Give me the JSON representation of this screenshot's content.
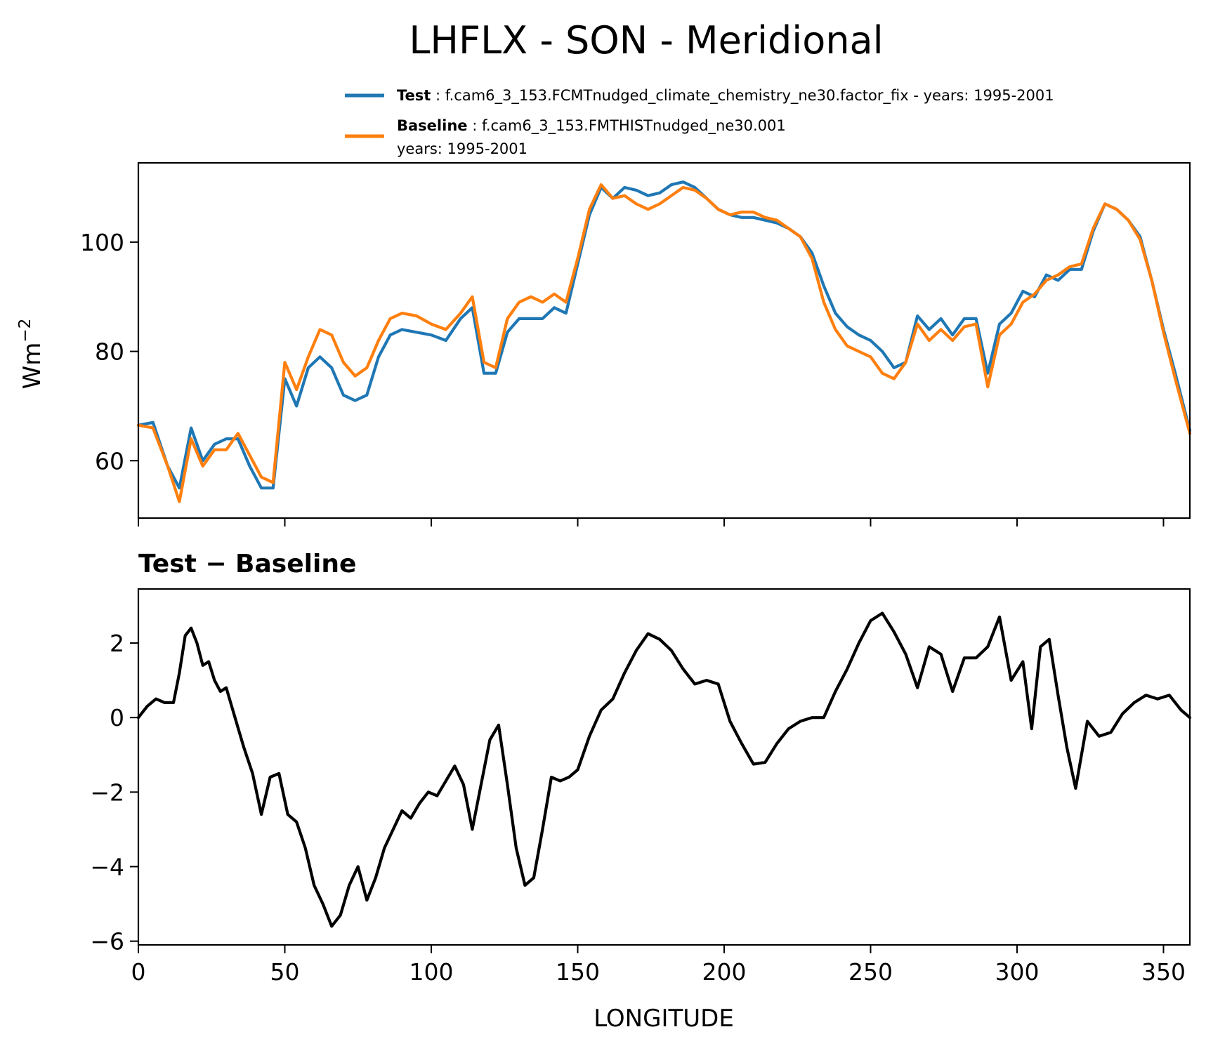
{
  "figure": {
    "title": "LHFLX - SON - Meridional",
    "subtitle": "Test − Baseline",
    "ylabel_top": "Wm⁻²",
    "xlabel": "LONGITUDE"
  },
  "legend": {
    "entries": [
      {
        "bold": "Test",
        "sep": " : ",
        "text": "f.cam6_3_153.FCMTnudged_climate_chemistry_ne30.factor_fix - years: 1995-2001",
        "text2": "",
        "color": "#1f77b4"
      },
      {
        "bold": "Baseline",
        "sep": " : ",
        "text": "f.cam6_3_153.FMTHISTnudged_ne30.001",
        "text2": "years: 1995-2001",
        "color": "#ff7f0e"
      }
    ]
  },
  "chart_data": [
    {
      "type": "line",
      "title": "",
      "xlabel": "",
      "ylabel": "Wm⁻²",
      "xlim": [
        0,
        359
      ],
      "ylim": [
        49.5,
        114.5
      ],
      "xticks": [
        0,
        50,
        100,
        150,
        200,
        250,
        300,
        350
      ],
      "yticks": [
        60,
        80,
        100
      ],
      "ytick_labels": [
        "60",
        "80",
        "100"
      ],
      "grid": false,
      "legend": "top-right",
      "x": [
        0,
        5,
        10,
        14,
        18,
        22,
        26,
        30,
        34,
        38,
        42,
        46,
        50,
        54,
        58,
        62,
        66,
        70,
        74,
        78,
        82,
        86,
        90,
        95,
        100,
        105,
        110,
        114,
        118,
        122,
        126,
        130,
        134,
        138,
        142,
        146,
        150,
        154,
        158,
        162,
        166,
        170,
        174,
        178,
        182,
        186,
        190,
        194,
        198,
        202,
        206,
        210,
        214,
        218,
        222,
        226,
        230,
        234,
        238,
        242,
        246,
        250,
        254,
        258,
        262,
        266,
        270,
        274,
        278,
        282,
        286,
        290,
        294,
        298,
        302,
        306,
        310,
        314,
        318,
        322,
        326,
        330,
        334,
        338,
        342,
        346,
        350,
        354,
        359
      ],
      "series": [
        {
          "name": "Test",
          "color": "#1f77b4",
          "values": [
            66.5,
            67,
            59,
            55,
            66,
            60,
            63,
            64,
            64,
            59,
            55,
            55,
            75,
            70,
            77,
            79,
            77,
            72,
            71,
            72,
            79,
            83,
            84,
            83.5,
            83,
            82,
            86,
            88,
            76,
            76,
            83.5,
            86,
            86,
            86,
            88,
            87,
            96,
            105,
            110,
            108,
            110,
            109.5,
            108.5,
            109,
            110.5,
            111,
            110,
            108,
            106,
            105,
            104.5,
            104.5,
            104,
            103.5,
            102.5,
            101,
            98,
            92,
            87,
            84.5,
            83,
            82,
            80,
            77,
            78,
            86.5,
            84,
            86,
            83,
            86,
            86,
            76,
            85,
            87,
            91,
            90,
            94,
            93,
            95,
            95,
            102,
            107,
            106,
            104,
            101,
            93,
            84,
            76,
            65.5
          ]
        },
        {
          "name": "Baseline",
          "color": "#ff7f0e",
          "values": [
            66.5,
            66,
            59,
            52.5,
            64,
            59,
            62,
            62,
            65,
            61,
            57,
            56,
            78,
            73,
            79,
            84,
            83,
            78,
            75.5,
            77,
            82,
            86,
            87,
            86.5,
            85,
            84,
            87,
            90,
            78,
            77,
            86,
            89,
            90,
            89,
            90.5,
            89,
            97,
            106,
            110.5,
            108,
            108.5,
            107,
            106,
            107,
            108.5,
            110,
            109.5,
            108,
            106,
            105,
            105.5,
            105.5,
            104.5,
            104,
            102.5,
            101,
            97,
            89,
            84,
            81,
            80,
            79,
            76,
            75,
            78,
            85,
            82,
            84,
            82,
            84.5,
            85,
            73.5,
            83,
            85,
            89,
            90.5,
            93,
            94,
            95.5,
            96,
            102.5,
            107,
            106,
            104,
            100.5,
            93,
            83.5,
            75,
            65
          ]
        }
      ]
    },
    {
      "type": "line",
      "title": "Test − Baseline",
      "xlabel": "LONGITUDE",
      "ylabel": "",
      "xlim": [
        0,
        359
      ],
      "ylim": [
        -6.1,
        3.45
      ],
      "xticks": [
        0,
        50,
        100,
        150,
        200,
        250,
        300,
        350
      ],
      "xtick_labels": [
        "0",
        "50",
        "100",
        "150",
        "200",
        "250",
        "300",
        "350"
      ],
      "yticks": [
        -6,
        -4,
        -2,
        0,
        2
      ],
      "ytick_labels": [
        "−6",
        "−4",
        "−2",
        "0",
        "2"
      ],
      "grid": false,
      "x": [
        0,
        3,
        6,
        9,
        12,
        14,
        16,
        18,
        20,
        22,
        24,
        26,
        28,
        30,
        33,
        36,
        39,
        42,
        45,
        48,
        51,
        54,
        57,
        60,
        63,
        66,
        69,
        72,
        75,
        78,
        81,
        84,
        87,
        90,
        93,
        96,
        99,
        102,
        105,
        108,
        111,
        114,
        117,
        120,
        123,
        126,
        129,
        132,
        135,
        138,
        141,
        144,
        147,
        150,
        154,
        158,
        162,
        166,
        170,
        174,
        178,
        182,
        186,
        190,
        194,
        198,
        202,
        206,
        210,
        214,
        218,
        222,
        226,
        230,
        234,
        238,
        242,
        246,
        250,
        254,
        258,
        262,
        266,
        270,
        274,
        278,
        282,
        286,
        290,
        294,
        298,
        302,
        305,
        308,
        311,
        314,
        317,
        320,
        324,
        328,
        332,
        336,
        340,
        344,
        348,
        352,
        356,
        359
      ],
      "series": [
        {
          "name": "Test − Baseline",
          "color": "#000000",
          "values": [
            0,
            0.3,
            0.5,
            0.4,
            0.4,
            1.2,
            2.2,
            2.4,
            2.0,
            1.4,
            1.5,
            1.0,
            0.7,
            0.8,
            0.0,
            -0.8,
            -1.5,
            -2.6,
            -1.6,
            -1.5,
            -2.6,
            -2.8,
            -3.5,
            -4.5,
            -5.0,
            -5.6,
            -5.3,
            -4.5,
            -4.0,
            -4.9,
            -4.3,
            -3.5,
            -3.0,
            -2.5,
            -2.7,
            -2.3,
            -2.0,
            -2.1,
            -1.7,
            -1.3,
            -1.8,
            -3.0,
            -1.8,
            -0.6,
            -0.2,
            -1.8,
            -3.5,
            -4.5,
            -4.3,
            -3.0,
            -1.6,
            -1.7,
            -1.6,
            -1.4,
            -0.5,
            0.2,
            0.5,
            1.2,
            1.8,
            2.25,
            2.1,
            1.8,
            1.3,
            0.9,
            1.0,
            0.9,
            -0.1,
            -0.7,
            -1.25,
            -1.2,
            -0.7,
            -0.3,
            -0.1,
            0.0,
            0.0,
            0.7,
            1.3,
            2.0,
            2.6,
            2.8,
            2.3,
            1.7,
            0.8,
            1.9,
            1.7,
            0.7,
            1.6,
            1.6,
            1.9,
            2.7,
            1.0,
            1.5,
            -0.3,
            1.9,
            2.1,
            0.6,
            -0.8,
            -1.9,
            -0.1,
            -0.5,
            -0.4,
            0.1,
            0.4,
            0.6,
            0.5,
            0.6,
            0.2,
            0.0
          ]
        }
      ]
    }
  ]
}
